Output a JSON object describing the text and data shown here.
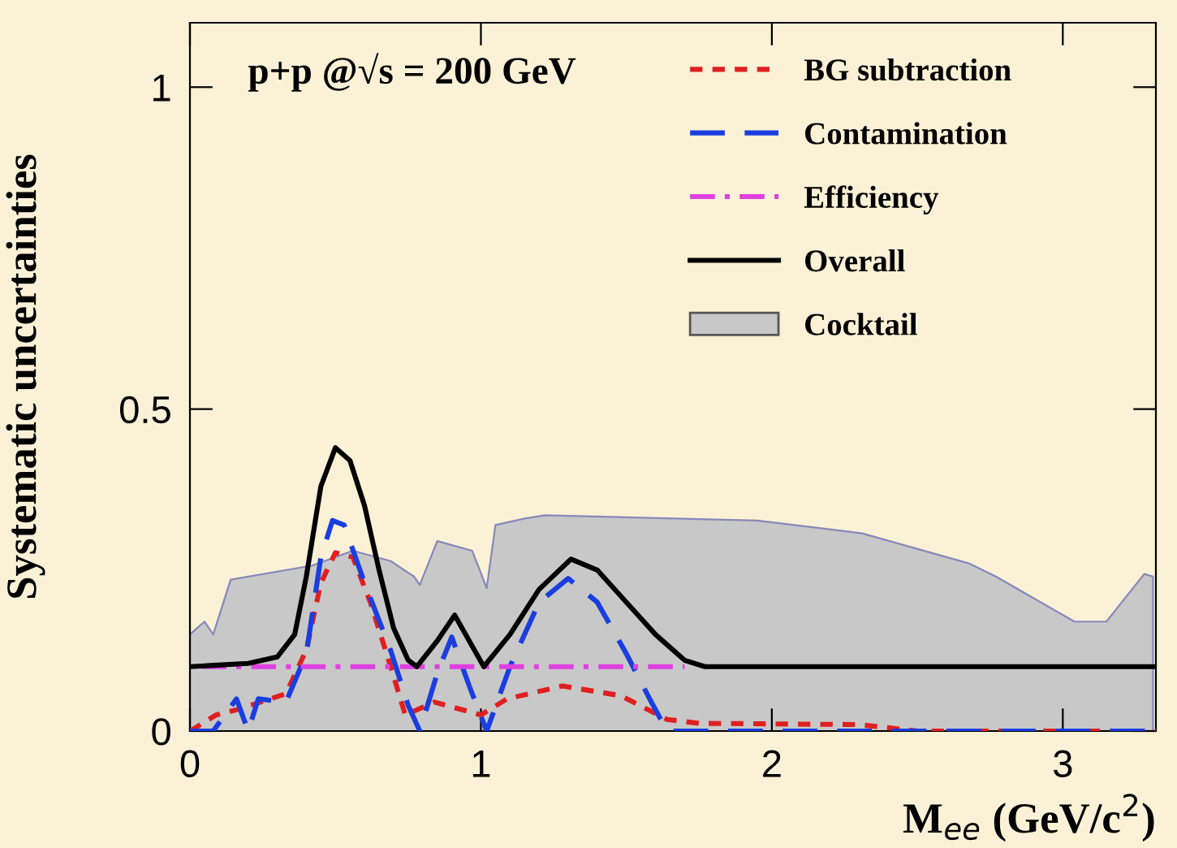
{
  "chart_data": {
    "type": "line",
    "xlabel": "M$_{ee}$ (GeV/c$^{2}$)",
    "ylabel": "Systematic uncertainties",
    "annotations": [
      "p+p @√s = 200 GeV"
    ],
    "xlim": [
      0,
      3.32
    ],
    "ylim": [
      0,
      1.1
    ],
    "xticks": [
      0,
      1,
      2,
      3
    ],
    "yticks": [
      0,
      0.5,
      1
    ],
    "legend": "top right",
    "grid": false,
    "marker": "none",
    "series": [
      {
        "name": "BG subtraction",
        "color": "#e02020",
        "line_style": "dotted",
        "x": [
          0,
          0.09,
          0.16,
          0.33,
          0.4,
          0.45,
          0.5,
          0.56,
          0.62,
          0.69,
          0.74,
          0.84,
          1.0,
          1.09,
          1.28,
          1.48,
          1.64,
          1.75,
          2.3,
          2.5,
          3.32
        ],
        "values": [
          0,
          0.025,
          0.033,
          0.058,
          0.126,
          0.23,
          0.277,
          0.27,
          0.2,
          0.1,
          0.025,
          0.045,
          0.025,
          0.05,
          0.07,
          0.055,
          0.018,
          0.012,
          0.01,
          0,
          0
        ]
      },
      {
        "name": "Contamination",
        "color": "#1a3ee0",
        "line_style": "dashed",
        "x": [
          0,
          0.08,
          0.16,
          0.2,
          0.235,
          0.33,
          0.4,
          0.45,
          0.49,
          0.53,
          0.6,
          0.69,
          0.75,
          0.79,
          0.85,
          0.9,
          0.96,
          1.02,
          1.1,
          1.2,
          1.3,
          1.4,
          1.5,
          1.58,
          1.64,
          3.32
        ],
        "values": [
          0,
          0,
          0.05,
          0,
          0.05,
          0.045,
          0.12,
          0.27,
          0.327,
          0.32,
          0.23,
          0.125,
          0.04,
          0,
          0.09,
          0.146,
          0.07,
          0,
          0.1,
          0.2,
          0.237,
          0.2,
          0.12,
          0.05,
          0,
          0
        ]
      },
      {
        "name": "Efficiency",
        "color": "#e040e0",
        "line_style": "dashdot",
        "x": [
          0.04,
          1.7
        ],
        "values": [
          0.1,
          0.1
        ]
      },
      {
        "name": "Overall",
        "color": "#000000",
        "line_style": "solid",
        "x": [
          0,
          0.2,
          0.3,
          0.36,
          0.4,
          0.45,
          0.5,
          0.55,
          0.6,
          0.65,
          0.7,
          0.75,
          0.78,
          0.85,
          0.91,
          0.96,
          1.01,
          1.1,
          1.2,
          1.31,
          1.4,
          1.5,
          1.6,
          1.7,
          1.77,
          3.32
        ],
        "values": [
          0.1,
          0.105,
          0.115,
          0.15,
          0.24,
          0.38,
          0.44,
          0.42,
          0.35,
          0.25,
          0.16,
          0.11,
          0.1,
          0.14,
          0.18,
          0.14,
          0.1,
          0.15,
          0.22,
          0.267,
          0.25,
          0.2,
          0.15,
          0.11,
          0.1,
          0.1
        ]
      },
      {
        "name": "Cocktail",
        "type": "area",
        "color": "#c8c8c8",
        "x": [
          0,
          0.05,
          0.08,
          0.14,
          0.42,
          0.56,
          0.69,
          0.77,
          0.79,
          0.85,
          0.97,
          1.02,
          1.05,
          1.15,
          1.22,
          1.95,
          2.31,
          2.68,
          2.77,
          3.04,
          3.15,
          3.28,
          3.31
        ],
        "values": [
          0.15,
          0.17,
          0.15,
          0.235,
          0.257,
          0.28,
          0.264,
          0.24,
          0.227,
          0.295,
          0.28,
          0.222,
          0.32,
          0.33,
          0.335,
          0.327,
          0.307,
          0.26,
          0.24,
          0.17,
          0.17,
          0.244,
          0.24
        ]
      }
    ]
  }
}
